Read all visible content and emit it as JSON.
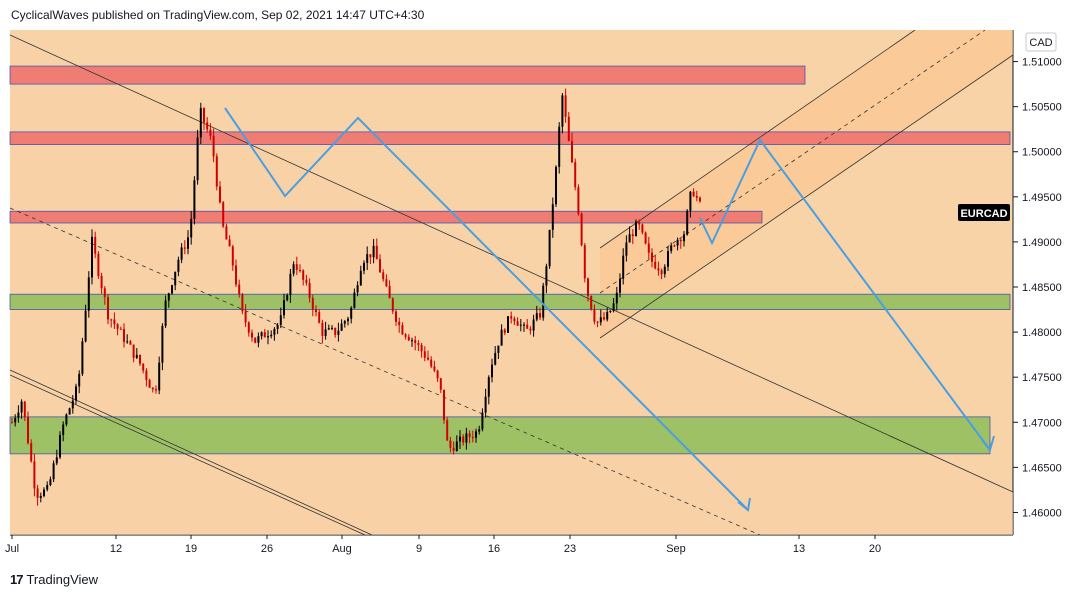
{
  "header": {
    "publisher_line": "CyclicalWaves published on TradingView.com, Sep 02, 2021 14:47 UTC+4:30"
  },
  "footer": {
    "logo_glyph": "17",
    "brand": "TradingView"
  },
  "chart_data": {
    "type": "candlestick",
    "symbol": "EURCAD",
    "currency": "CAD",
    "y_ticks": [
      "1.51000",
      "1.50500",
      "1.50000",
      "1.49500",
      "1.49000",
      "1.48500",
      "1.48000",
      "1.47500",
      "1.47000",
      "1.46500",
      "1.46000"
    ],
    "x_ticks": [
      "Jul",
      "12",
      "19",
      "26",
      "Aug",
      "9",
      "16",
      "23",
      "Sep",
      "13",
      "20"
    ],
    "ylim": [
      1.4575,
      1.5135
    ],
    "last_price_label": "EURCAD",
    "zones": [
      {
        "kind": "resistance",
        "color": "#ef6f6c",
        "from": 1.5075,
        "to": 1.5095
      },
      {
        "kind": "resistance",
        "color": "#ef6f6c",
        "from": 1.5008,
        "to": 1.5022
      },
      {
        "kind": "resistance",
        "color": "#ef6f6c",
        "from": 1.4921,
        "to": 1.4934
      },
      {
        "kind": "support",
        "color": "#8fbf5a",
        "from": 1.4825,
        "to": 1.4842
      },
      {
        "kind": "support",
        "color": "#8fbf5a",
        "from": 1.4665,
        "to": 1.4706
      }
    ],
    "candles": {
      "red": "#d10000",
      "black": "#000000"
    },
    "colors": {
      "background": "#f8d3a8",
      "projection": "#4a9fe0",
      "channel_fill": "#fbc38a"
    }
  }
}
